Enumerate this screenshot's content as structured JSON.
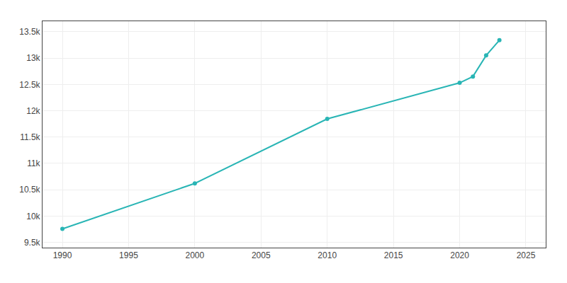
{
  "chart_data": {
    "type": "line",
    "x": [
      1990,
      2000,
      2010,
      2020,
      2021,
      2022,
      2023
    ],
    "values": [
      9757,
      10620,
      11845,
      12530,
      12650,
      13050,
      13340
    ],
    "color": "#29b5b5",
    "marker": "circle",
    "xlim": [
      1988.5,
      2026.5
    ],
    "xticks": [
      1990,
      1995,
      2000,
      2005,
      2010,
      2015,
      2020,
      2025
    ],
    "ylim": [
      9400,
      13700
    ],
    "yticks": [
      {
        "value": 9500,
        "label": "9.5k"
      },
      {
        "value": 10000,
        "label": "10k"
      },
      {
        "value": 10500,
        "label": "10.5k"
      },
      {
        "value": 11000,
        "label": "11k"
      },
      {
        "value": 11500,
        "label": "11.5k"
      },
      {
        "value": 12000,
        "label": "12k"
      },
      {
        "value": 12500,
        "label": "12.5k"
      },
      {
        "value": 13000,
        "label": "13k"
      },
      {
        "value": 13500,
        "label": "13.5k"
      }
    ],
    "grid": true
  }
}
